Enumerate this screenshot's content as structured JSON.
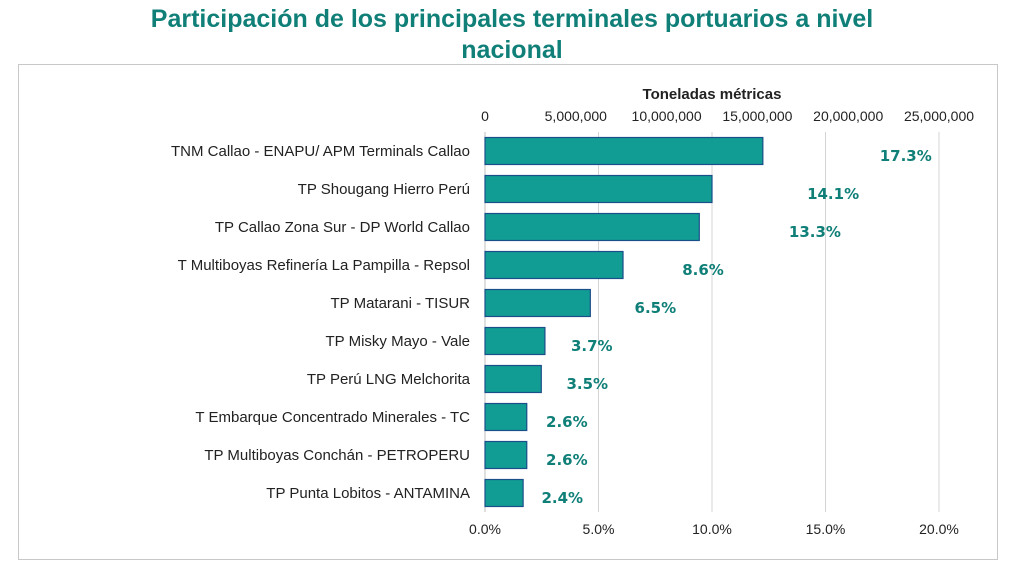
{
  "chart_data": {
    "type": "bar",
    "orientation": "horizontal",
    "title": "Participación de los principales terminales portuarios a nivel nacional",
    "title_lines": [
      "Participación de los principales terminales portuarios a nivel",
      "nacional"
    ],
    "x2label": "Toneladas métricas",
    "categories": [
      "TNM Callao - ENAPU/ APM Terminals Callao",
      "TP Shougang Hierro Perú",
      "TP Callao Zona Sur - DP World Callao",
      "T Multiboyas Refinería La Pampilla - Repsol",
      "TP Matarani - TISUR",
      "TP Misky Mayo - Vale",
      "TP Perú LNG Melchorita",
      "T Embarque Concentrado Minerales - TC",
      "TP Multiboyas Conchán - PETROPERU",
      "TP Punta Lobitos - ANTAMINA"
    ],
    "values": [
      15300000,
      12500000,
      11800000,
      7600000,
      5800000,
      3300000,
      3100000,
      2300000,
      2300000,
      2100000
    ],
    "percent_values": [
      17.3,
      14.1,
      13.3,
      8.6,
      6.5,
      3.7,
      3.5,
      2.6,
      2.6,
      2.4
    ],
    "percent_labels": [
      "17.3%",
      "14.1%",
      "13.3%",
      "8.6%",
      "6.5%",
      "3.7%",
      "3.5%",
      "2.6%",
      "2.6%",
      "2.4%"
    ],
    "x_top_ticks": [
      "0",
      "5,000,000",
      "10,000,000",
      "15,000,000",
      "20,000,000",
      "25,000,000"
    ],
    "x_top_tick_values": [
      0,
      5000000,
      10000000,
      15000000,
      20000000,
      25000000
    ],
    "x_bottom_ticks": [
      "0.0%",
      "5.0%",
      "10.0%",
      "15.0%",
      "20.0%"
    ],
    "x_bottom_tick_values": [
      0,
      5,
      10,
      15,
      20
    ],
    "xlim": [
      0,
      20
    ],
    "grid": true,
    "colors": {
      "bar": "#119c94",
      "bar_edge": "#1b4f8a",
      "label": "#0f7f78",
      "grid": "#d4d4d4"
    }
  }
}
